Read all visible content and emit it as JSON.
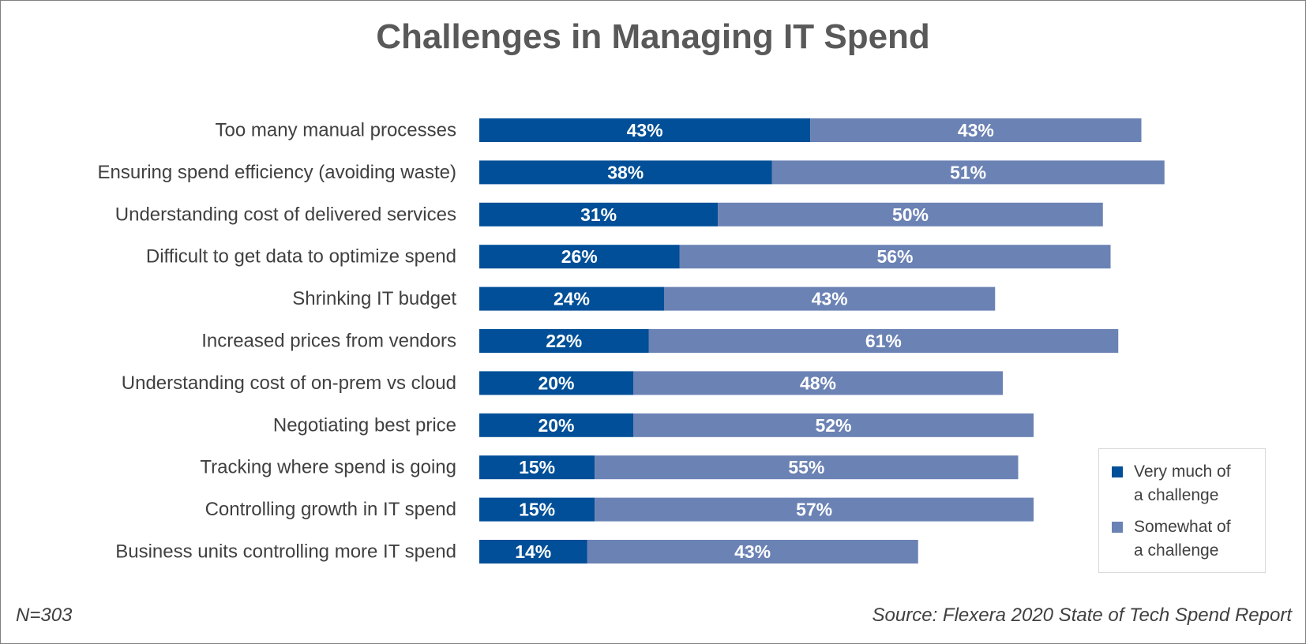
{
  "chart_data": {
    "type": "bar",
    "orientation": "horizontal",
    "stacked": true,
    "title": "Challenges in Managing IT Spend",
    "categories": [
      "Too many manual processes",
      "Ensuring spend efficiency (avoiding waste)",
      "Understanding cost of delivered services",
      "Difficult to get data to optimize spend",
      "Shrinking IT budget",
      "Increased prices from vendors",
      "Understanding cost of on-prem vs cloud",
      "Negotiating best price",
      "Tracking where spend is going",
      "Controlling growth in IT spend",
      "Business units controlling more IT spend"
    ],
    "series": [
      {
        "name": "Very much of a challenge",
        "color": "#004f98",
        "values": [
          43,
          38,
          31,
          26,
          24,
          22,
          20,
          20,
          15,
          15,
          14
        ],
        "labels": [
          "43%",
          "38%",
          "31%",
          "26%",
          "24%",
          "22%",
          "20%",
          "20%",
          "15%",
          "15%",
          "14%"
        ]
      },
      {
        "name": "Somewhat of a challenge",
        "color": "#6b82b4",
        "values": [
          43,
          51,
          50,
          56,
          43,
          61,
          48,
          52,
          55,
          57,
          43
        ],
        "labels": [
          "43%",
          "51%",
          "50%",
          "56%",
          "43%",
          "61%",
          "48%",
          "52%",
          "55%",
          "57%",
          "43%"
        ]
      }
    ],
    "xlim": [
      0,
      100
    ],
    "grid": false,
    "legend_position": "bottom-right",
    "value_unit": "%"
  },
  "legend": {
    "very_much_line1": "Very much of",
    "very_much_line2": "a challenge",
    "somewhat_line1": "Somewhat of",
    "somewhat_line2": "a challenge"
  },
  "notes": {
    "sample_size": "N=303",
    "source": "Source: Flexera 2020 State of Tech Spend Report"
  }
}
